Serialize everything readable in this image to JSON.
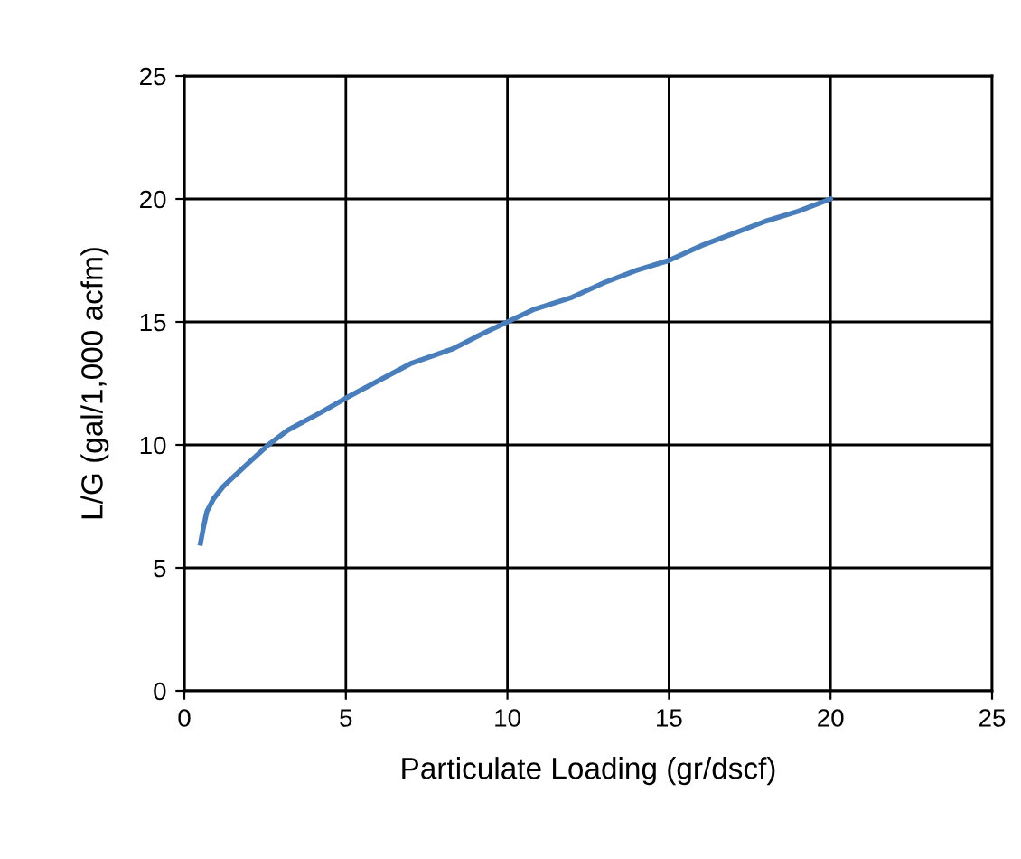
{
  "chart_data": {
    "type": "line",
    "xlabel": "Particulate Loading (gr/dscf)",
    "ylabel": "L/G (gal/1,000 acfm)",
    "series": [
      {
        "color": "#4a7ebb",
        "x": [
          0.5,
          0.6,
          0.7,
          0.9,
          1.2,
          1.6,
          2.1,
          2.6,
          3.2,
          4.2,
          5.0,
          6.0,
          7.0,
          8.3,
          9.2,
          10.0,
          10.8,
          12.0,
          13.0,
          14.0,
          15.0,
          16.0,
          17.0,
          18.0,
          19.0,
          20.0
        ],
        "values": [
          6.0,
          6.7,
          7.3,
          7.8,
          8.3,
          8.8,
          9.4,
          10.0,
          10.6,
          11.3,
          11.9,
          12.6,
          13.3,
          13.9,
          14.5,
          15.0,
          15.5,
          16.0,
          16.6,
          17.1,
          17.5,
          18.1,
          18.6,
          19.1,
          19.5,
          20.0
        ]
      }
    ],
    "xlim": [
      0,
      25
    ],
    "ylim": [
      0,
      25
    ],
    "xticks": [
      0,
      5,
      10,
      15,
      20,
      25
    ],
    "yticks": [
      0,
      5,
      10,
      15,
      20,
      25
    ],
    "grid": true,
    "line_style": "solid",
    "marker": "none"
  }
}
